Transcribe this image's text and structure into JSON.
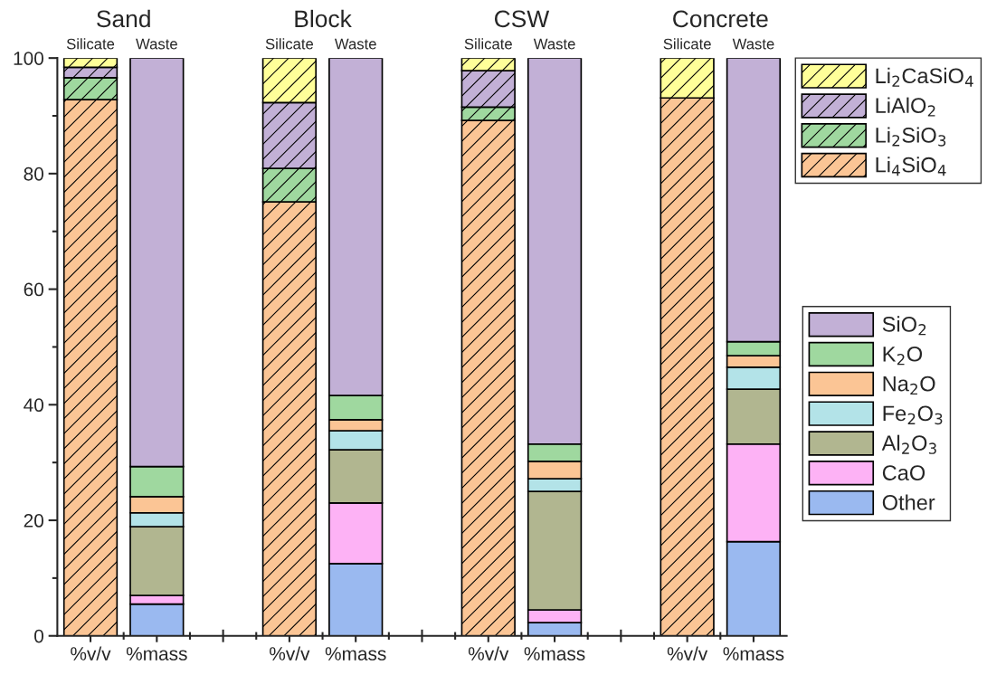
{
  "chart_data": {
    "type": "bar",
    "stacked": true,
    "categories": [
      "%v/v",
      "%mass",
      null,
      "%v/v",
      "%mass",
      null,
      "%v/v",
      "%mass",
      null,
      "%v/v",
      "%mass"
    ],
    "series": [
      {
        "name": "Li$_{4}$SiO$_{4}$",
        "color": "#fbc595",
        "values": [
          92.8,
          null,
          null,
          75.1,
          null,
          null,
          89.2,
          null,
          null,
          93.1,
          null
        ]
      },
      {
        "name": "Li$_{2}$SiO$_{3}$",
        "color": "#9fd89f",
        "values": [
          3.8,
          null,
          null,
          5.8,
          null,
          null,
          2.3,
          null,
          null,
          null,
          null
        ]
      },
      {
        "name": "LiAlO$_{2}$",
        "color": "#c2b0d6",
        "values": [
          1.8,
          null,
          null,
          11.4,
          null,
          null,
          6.3,
          null,
          null,
          null,
          null
        ]
      },
      {
        "name": "Li$_{2}$CaSiO$_{4}$",
        "color": "#ffff99",
        "values": [
          1.6,
          null,
          null,
          7.7,
          null,
          null,
          2.2,
          null,
          null,
          6.9,
          null
        ]
      },
      {
        "name": "Other",
        "color": "#9ab9f0",
        "values": [
          null,
          5.5,
          null,
          null,
          12.5,
          null,
          null,
          2.3,
          null,
          null,
          16.3
        ]
      },
      {
        "name": "CaO",
        "color": "#fdb2f5",
        "values": [
          null,
          1.5,
          null,
          null,
          10.5,
          null,
          null,
          2.2,
          null,
          null,
          16.9
        ]
      },
      {
        "name": "Al$_{2}$O$_{3}$",
        "color": "#b1b690",
        "values": [
          null,
          11.9,
          null,
          null,
          9.2,
          null,
          null,
          20.5,
          null,
          null,
          9.5
        ]
      },
      {
        "name": "Fe$_{2}$O$_{3}$",
        "color": "#b3e3e8",
        "values": [
          null,
          2.4,
          null,
          null,
          3.3,
          null,
          null,
          2.2,
          null,
          null,
          3.8
        ]
      },
      {
        "name": "Na$_{2}$O",
        "color": "#fbc595",
        "values": [
          null,
          2.8,
          null,
          null,
          1.9,
          null,
          null,
          3.0,
          null,
          null,
          2.0
        ]
      },
      {
        "name": "K$_{2}$O",
        "color": "#9fd89f",
        "values": [
          null,
          5.2,
          null,
          null,
          4.2,
          null,
          null,
          3.0,
          null,
          null,
          2.4
        ]
      },
      {
        "name": "SiO$_{2}$",
        "color": "#c2b0d6",
        "values": [
          null,
          70.7,
          null,
          null,
          58.4,
          null,
          null,
          66.8,
          null,
          null,
          49.1
        ]
      }
    ],
    "annotations": [
      "Sand",
      "Silicate",
      "Waste",
      "Block",
      "Silicate",
      "Waste",
      "CSW",
      "Silicate",
      "Waste",
      "Concrete",
      "Silicate",
      "Waste"
    ],
    "ylim": [
      0,
      100
    ],
    "yticks": [
      0,
      20,
      40,
      60,
      80,
      100
    ],
    "grid": false,
    "legend": "right"
  }
}
